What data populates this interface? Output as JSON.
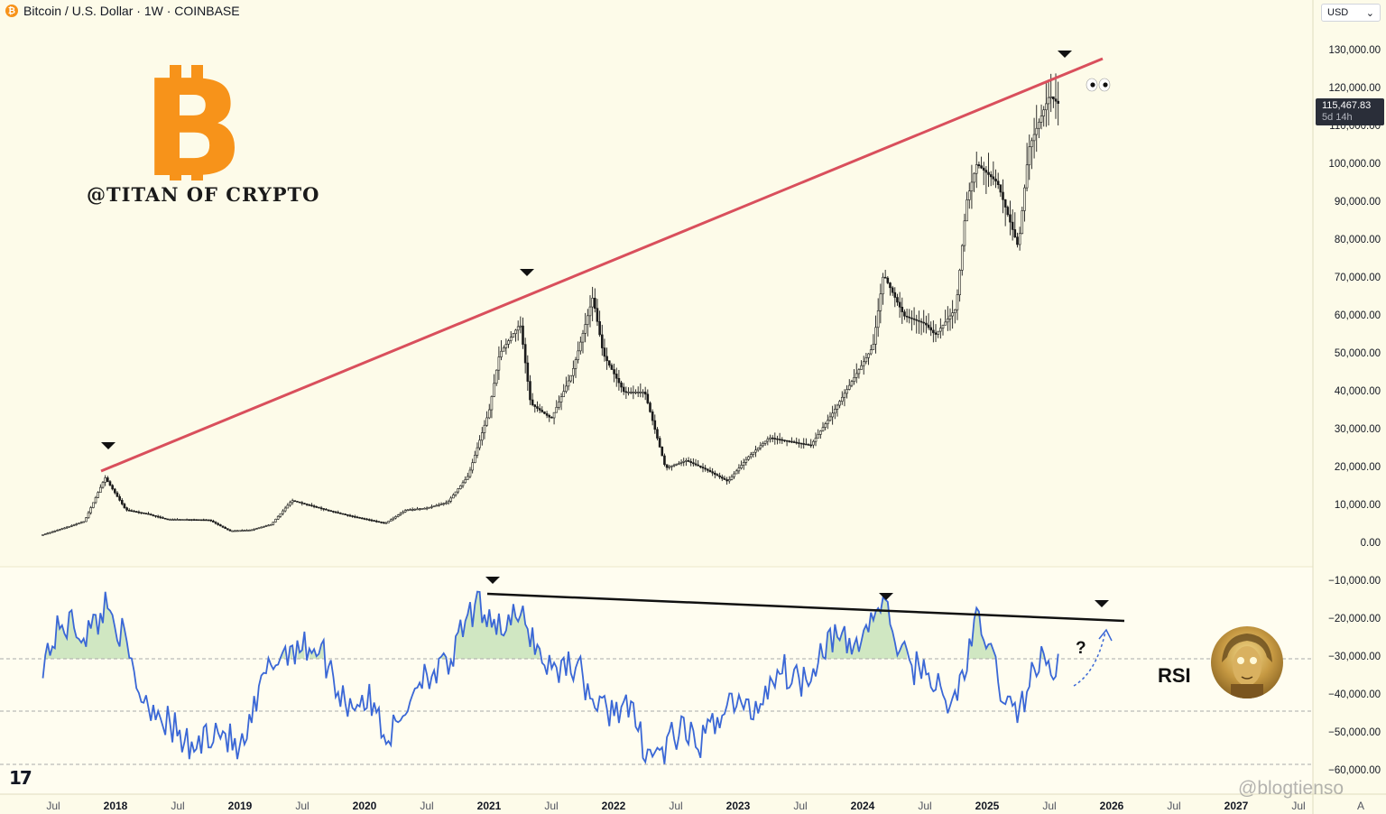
{
  "header": {
    "btc_badge": "₿",
    "symbol": "Bitcoin / U.S. Dollar · 1W · COINBASE",
    "currency": "USD",
    "currency_chevron": "⌄"
  },
  "price_tag": {
    "price": "115,467.83",
    "countdown": "5d 14h"
  },
  "branding": {
    "logo_glyph": "B",
    "handle": "@TITAN OF CRYPTO",
    "chart_logo": "17",
    "watermark": "@blogtienso"
  },
  "annotations": {
    "rsi_label": "RSI",
    "question": "?",
    "eyes": "👀"
  },
  "colors": {
    "background": "#fdfbe9",
    "trendline": "#d94f5c",
    "rsi": "#3a67d6",
    "bitcoin_orange": "#f7931a",
    "candles": "#1a1a1a"
  },
  "chart_data": {
    "type": "line",
    "price_axis_ticks": [
      "130,000.00",
      "120,000.00",
      "110,000.00",
      "100,000.00",
      "90,000.00",
      "80,000.00",
      "70,000.00",
      "60,000.00",
      "50,000.00",
      "40,000.00",
      "30,000.00",
      "20,000.00",
      "10,000.00",
      "0.00",
      "−10,000.00",
      "−20,000.00",
      "−30,000.00",
      "−40,000.00",
      "−50,000.00",
      "−60,000.00"
    ],
    "time_axis_ticks": [
      "Jul",
      "2018",
      "Jul",
      "2019",
      "Jul",
      "2020",
      "Jul",
      "2021",
      "Jul",
      "2022",
      "Jul",
      "2023",
      "Jul",
      "2024",
      "Jul",
      "2025",
      "Jul",
      "2026",
      "Jul",
      "2027",
      "Jul",
      "A"
    ],
    "ylim": [
      -62000,
      132000
    ],
    "series": [
      {
        "x": [
          "2017-06",
          "2017-08",
          "2017-10",
          "2017-12",
          "2018-02",
          "2018-04",
          "2018-06",
          "2018-08",
          "2018-10",
          "2018-12",
          "2019-02",
          "2019-04",
          "2019-06",
          "2019-08",
          "2019-10",
          "2019-12",
          "2020-03",
          "2020-05",
          "2020-07",
          "2020-09",
          "2020-11",
          "2021-01",
          "2021-02",
          "2021-04",
          "2021-05",
          "2021-07",
          "2021-09",
          "2021-11",
          "2021-12",
          "2022-02",
          "2022-04",
          "2022-06",
          "2022-08",
          "2022-10",
          "2022-12",
          "2023-02",
          "2023-04",
          "2023-06",
          "2023-08",
          "2023-10",
          "2023-12",
          "2024-02",
          "2024-03",
          "2024-05",
          "2024-07",
          "2024-08",
          "2024-10",
          "2024-11",
          "2024-12",
          "2025-02",
          "2025-04",
          "2025-05",
          "2025-07",
          "2025-08"
        ],
        "values": [
          2500,
          4200,
          6000,
          17500,
          9000,
          8000,
          6500,
          6500,
          6400,
          3500,
          3700,
          5200,
          11500,
          10000,
          8500,
          7200,
          5500,
          9000,
          9500,
          11000,
          18000,
          35000,
          50000,
          58000,
          37000,
          33000,
          45000,
          65000,
          50000,
          40000,
          40000,
          20000,
          22000,
          19500,
          16500,
          23000,
          28000,
          27000,
          26000,
          34000,
          43000,
          52000,
          71000,
          60000,
          58000,
          55000,
          62000,
          90000,
          100000,
          95000,
          78000,
          104000,
          118000,
          115467.83
        ]
      }
    ],
    "rsi_levels": [
      {
        "x": "2017-06",
        "v": 70
      },
      {
        "x": "2017-12",
        "v": 88
      },
      {
        "x": "2018-06",
        "v": 33
      },
      {
        "x": "2019-01",
        "v": 30
      },
      {
        "x": "2019-06",
        "v": 78
      },
      {
        "x": "2020-03",
        "v": 35
      },
      {
        "x": "2021-01",
        "v": 90
      },
      {
        "x": "2022-06",
        "v": 25
      },
      {
        "x": "2024-03",
        "v": 85
      },
      {
        "x": "2024-09",
        "v": 45
      },
      {
        "x": "2024-12",
        "v": 78
      },
      {
        "x": "2025-04",
        "v": 43
      },
      {
        "x": "2025-07",
        "v": 68
      }
    ]
  }
}
